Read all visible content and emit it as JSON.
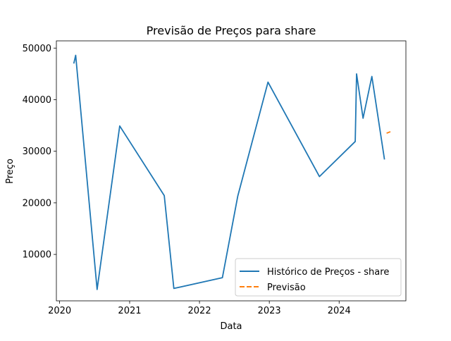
{
  "chart_data": {
    "type": "line",
    "title": "Previsão de Preços para share",
    "xlabel": "Data",
    "ylabel": "Preço",
    "xlim": [
      "2019-12-15",
      "2024-12-15"
    ],
    "ylim": [
      1000,
      51400
    ],
    "x_ticks": [
      "2020",
      "2021",
      "2022",
      "2023",
      "2024"
    ],
    "x_tick_dates": [
      "2020-01-01",
      "2021-01-01",
      "2022-01-01",
      "2023-01-01",
      "2024-01-01"
    ],
    "y_ticks": [
      10000,
      20000,
      30000,
      40000,
      50000
    ],
    "grid": false,
    "legend_position": "lower-right",
    "series": [
      {
        "name": "Histórico de Preços - share",
        "color": "#1f77b4",
        "style": "solid",
        "points": [
          {
            "x": "2020-03-15",
            "y": 47000
          },
          {
            "x": "2020-03-25",
            "y": 48600
          },
          {
            "x": "2020-07-15",
            "y": 3200
          },
          {
            "x": "2020-11-10",
            "y": 34900
          },
          {
            "x": "2021-07-01",
            "y": 21400
          },
          {
            "x": "2021-08-20",
            "y": 3400
          },
          {
            "x": "2022-05-01",
            "y": 5500
          },
          {
            "x": "2022-07-20",
            "y": 21300
          },
          {
            "x": "2022-12-25",
            "y": 43400
          },
          {
            "x": "2023-09-20",
            "y": 25100
          },
          {
            "x": "2024-03-25",
            "y": 31900
          },
          {
            "x": "2024-04-01",
            "y": 45000
          },
          {
            "x": "2024-05-05",
            "y": 36400
          },
          {
            "x": "2024-06-20",
            "y": 44500
          },
          {
            "x": "2024-08-25",
            "y": 28400
          }
        ]
      },
      {
        "name": "Previsão",
        "color": "#ff7f0e",
        "style": "dashed",
        "points": [
          {
            "x": "2024-09-05",
            "y": 33500
          },
          {
            "x": "2024-09-25",
            "y": 33800
          }
        ]
      }
    ]
  }
}
